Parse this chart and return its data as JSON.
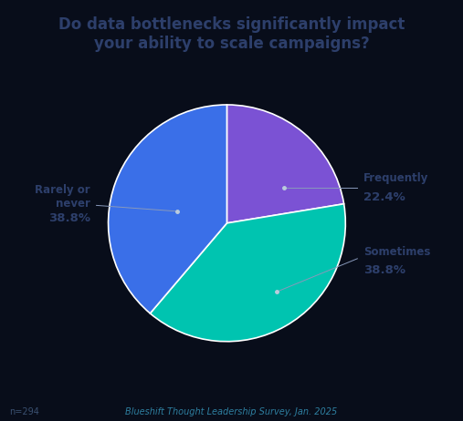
{
  "title": "Do data bottlenecks significantly impact\nyour ability to scale campaigns?",
  "title_color": "#2d3f6b",
  "slices": [
    {
      "label": "Frequently",
      "value": 22.4,
      "color": "#7b52d4"
    },
    {
      "label": "Sometimes",
      "value": 38.8,
      "color": "#00c4b0"
    },
    {
      "label": "Rarely or\nnever",
      "value": 38.8,
      "color": "#3a6fe8"
    }
  ],
  "line_color": "#8899bb",
  "background_color": "#080d1a",
  "footnote": "n=294",
  "source": "Blueshift Thought Leadership Survey, Jan. 2025",
  "footnote_color": "#3a5070",
  "source_color": "#2e7fa0",
  "title_fontsize": 12,
  "label_name_fontsize": 8.5,
  "label_value_fontsize": 9.5,
  "footnote_fontsize": 7,
  "wedge_edge_color": "#ffffff",
  "wedge_linewidth": 1.2,
  "label_name_color": "#2d3f6b",
  "label_value_color": "#2d3f6b"
}
